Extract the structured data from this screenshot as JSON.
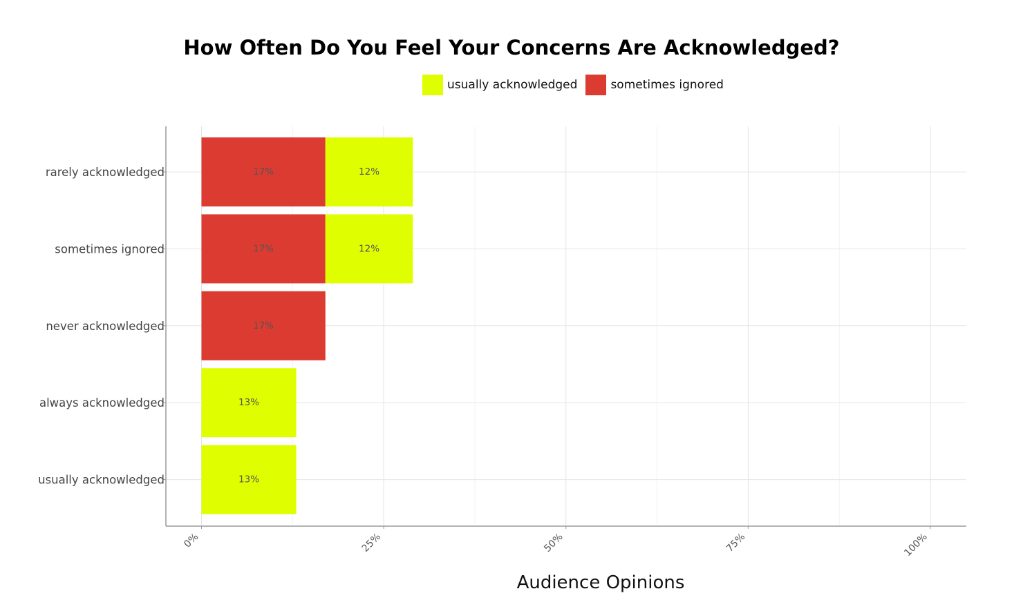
{
  "chart_data": {
    "type": "bar",
    "orientation": "horizontal",
    "stacked": true,
    "title": "How Often Do You Feel Your Concerns Are Acknowledged?",
    "xlabel": "Audience Opinions",
    "ylabel": "",
    "xlim": [
      0,
      100
    ],
    "x_ticks": [
      "0%",
      "25%",
      "50%",
      "75%",
      "100%"
    ],
    "x_tick_values": [
      0,
      25,
      50,
      75,
      100
    ],
    "categories": [
      "rarely acknowledged",
      "sometimes ignored",
      "never acknowledged",
      "always acknowledged",
      "usually acknowledged"
    ],
    "series": [
      {
        "name": "sometimes ignored",
        "color": "#dc3b32",
        "values": [
          17,
          17,
          17,
          0,
          0
        ],
        "labels": [
          "17%",
          "17%",
          "17%",
          "",
          ""
        ]
      },
      {
        "name": "usually acknowledged",
        "color": "#dfff00",
        "values": [
          12,
          12,
          0,
          13,
          13
        ],
        "labels": [
          "12%",
          "12%",
          "",
          "13%",
          "13%"
        ]
      }
    ],
    "legend": {
      "placement": "top",
      "entries": [
        {
          "name": "usually acknowledged",
          "color": "#dfff00"
        },
        {
          "name": "sometimes ignored",
          "color": "#dc3b32"
        }
      ]
    },
    "grid": true
  }
}
